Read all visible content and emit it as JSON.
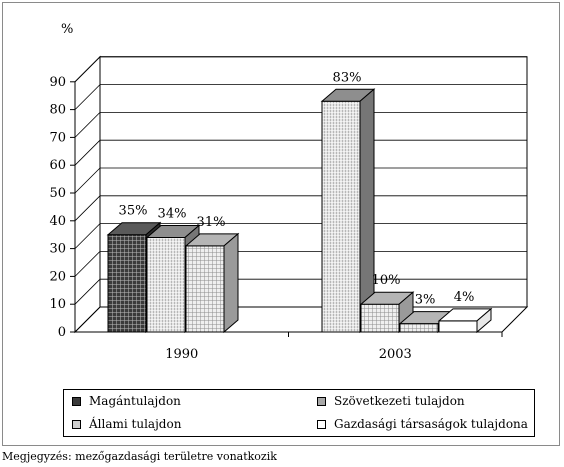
{
  "chart_data": {
    "type": "bar",
    "categories": [
      "1990",
      "2003"
    ],
    "ylabel": "%",
    "ylim": [
      0,
      90
    ],
    "yticks": [
      0,
      10,
      20,
      30,
      40,
      50,
      60,
      70,
      80,
      90
    ],
    "series_styles": [
      {
        "color": "#4a4a4a",
        "pattern": "dark-grid"
      },
      {
        "color": "#a8a8a8",
        "pattern": "light-vertical"
      },
      {
        "color": "#cfcfcf",
        "pattern": "light-grid"
      },
      {
        "color": "#ffffff",
        "pattern": "none"
      }
    ],
    "series": [
      {
        "name": "Magántulajdon",
        "values": [
          35,
          null
        ],
        "labels": [
          "35%",
          ""
        ]
      },
      {
        "name": "Szövetkezeti tulajdon",
        "values": [
          34,
          83
        ],
        "labels": [
          "34%",
          "83%"
        ]
      },
      {
        "name": "Állami tulajdon",
        "values": [
          31,
          10
        ],
        "labels": [
          "31%",
          "10%"
        ]
      },
      {
        "name": "Gazdasági társaságok tulajdona",
        "values": [
          null,
          3
        ],
        "labels": [
          "",
          "3%"
        ]
      },
      {
        "name": "",
        "values": [
          null,
          4
        ],
        "labels": [
          "",
          "4%"
        ]
      }
    ]
  },
  "note": "Megjegyzés: mezőgazdasági területre vonatkozik"
}
